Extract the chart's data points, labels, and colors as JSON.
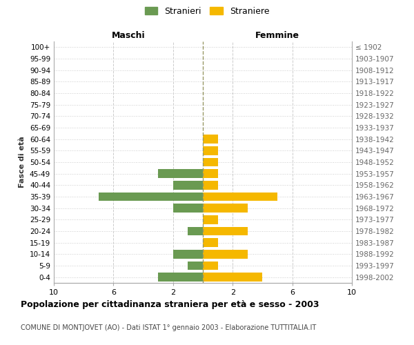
{
  "age_groups": [
    "0-4",
    "5-9",
    "10-14",
    "15-19",
    "20-24",
    "25-29",
    "30-34",
    "35-39",
    "40-44",
    "45-49",
    "50-54",
    "55-59",
    "60-64",
    "65-69",
    "70-74",
    "75-79",
    "80-84",
    "85-89",
    "90-94",
    "95-99",
    "100+"
  ],
  "birth_years": [
    "1998-2002",
    "1993-1997",
    "1988-1992",
    "1983-1987",
    "1978-1982",
    "1973-1977",
    "1968-1972",
    "1963-1967",
    "1958-1962",
    "1953-1957",
    "1948-1952",
    "1943-1947",
    "1938-1942",
    "1933-1937",
    "1928-1932",
    "1923-1927",
    "1918-1922",
    "1913-1917",
    "1908-1912",
    "1903-1907",
    "≤ 1902"
  ],
  "maschi": [
    3,
    1,
    2,
    0,
    1,
    0,
    2,
    7,
    2,
    3,
    0,
    0,
    0,
    0,
    0,
    0,
    0,
    0,
    0,
    0,
    0
  ],
  "femmine": [
    4,
    1,
    3,
    1,
    3,
    1,
    3,
    5,
    1,
    1,
    1,
    1,
    1,
    0,
    0,
    0,
    0,
    0,
    0,
    0,
    0
  ],
  "maschi_color": "#6a9a52",
  "femmine_color": "#f5b800",
  "center_line_color": "#999966",
  "background_color": "#ffffff",
  "grid_color": "#cccccc",
  "title": "Popolazione per cittadinanza straniera per età e sesso - 2003",
  "subtitle": "COMUNE DI MONTJOVET (AO) - Dati ISTAT 1° gennaio 2003 - Elaborazione TUTTITALIA.IT",
  "ylabel_left": "Fasce di età",
  "xlabel_left": "Maschi",
  "xlabel_right": "Femmine",
  "legend_stranieri": "Stranieri",
  "legend_straniere": "Straniere"
}
